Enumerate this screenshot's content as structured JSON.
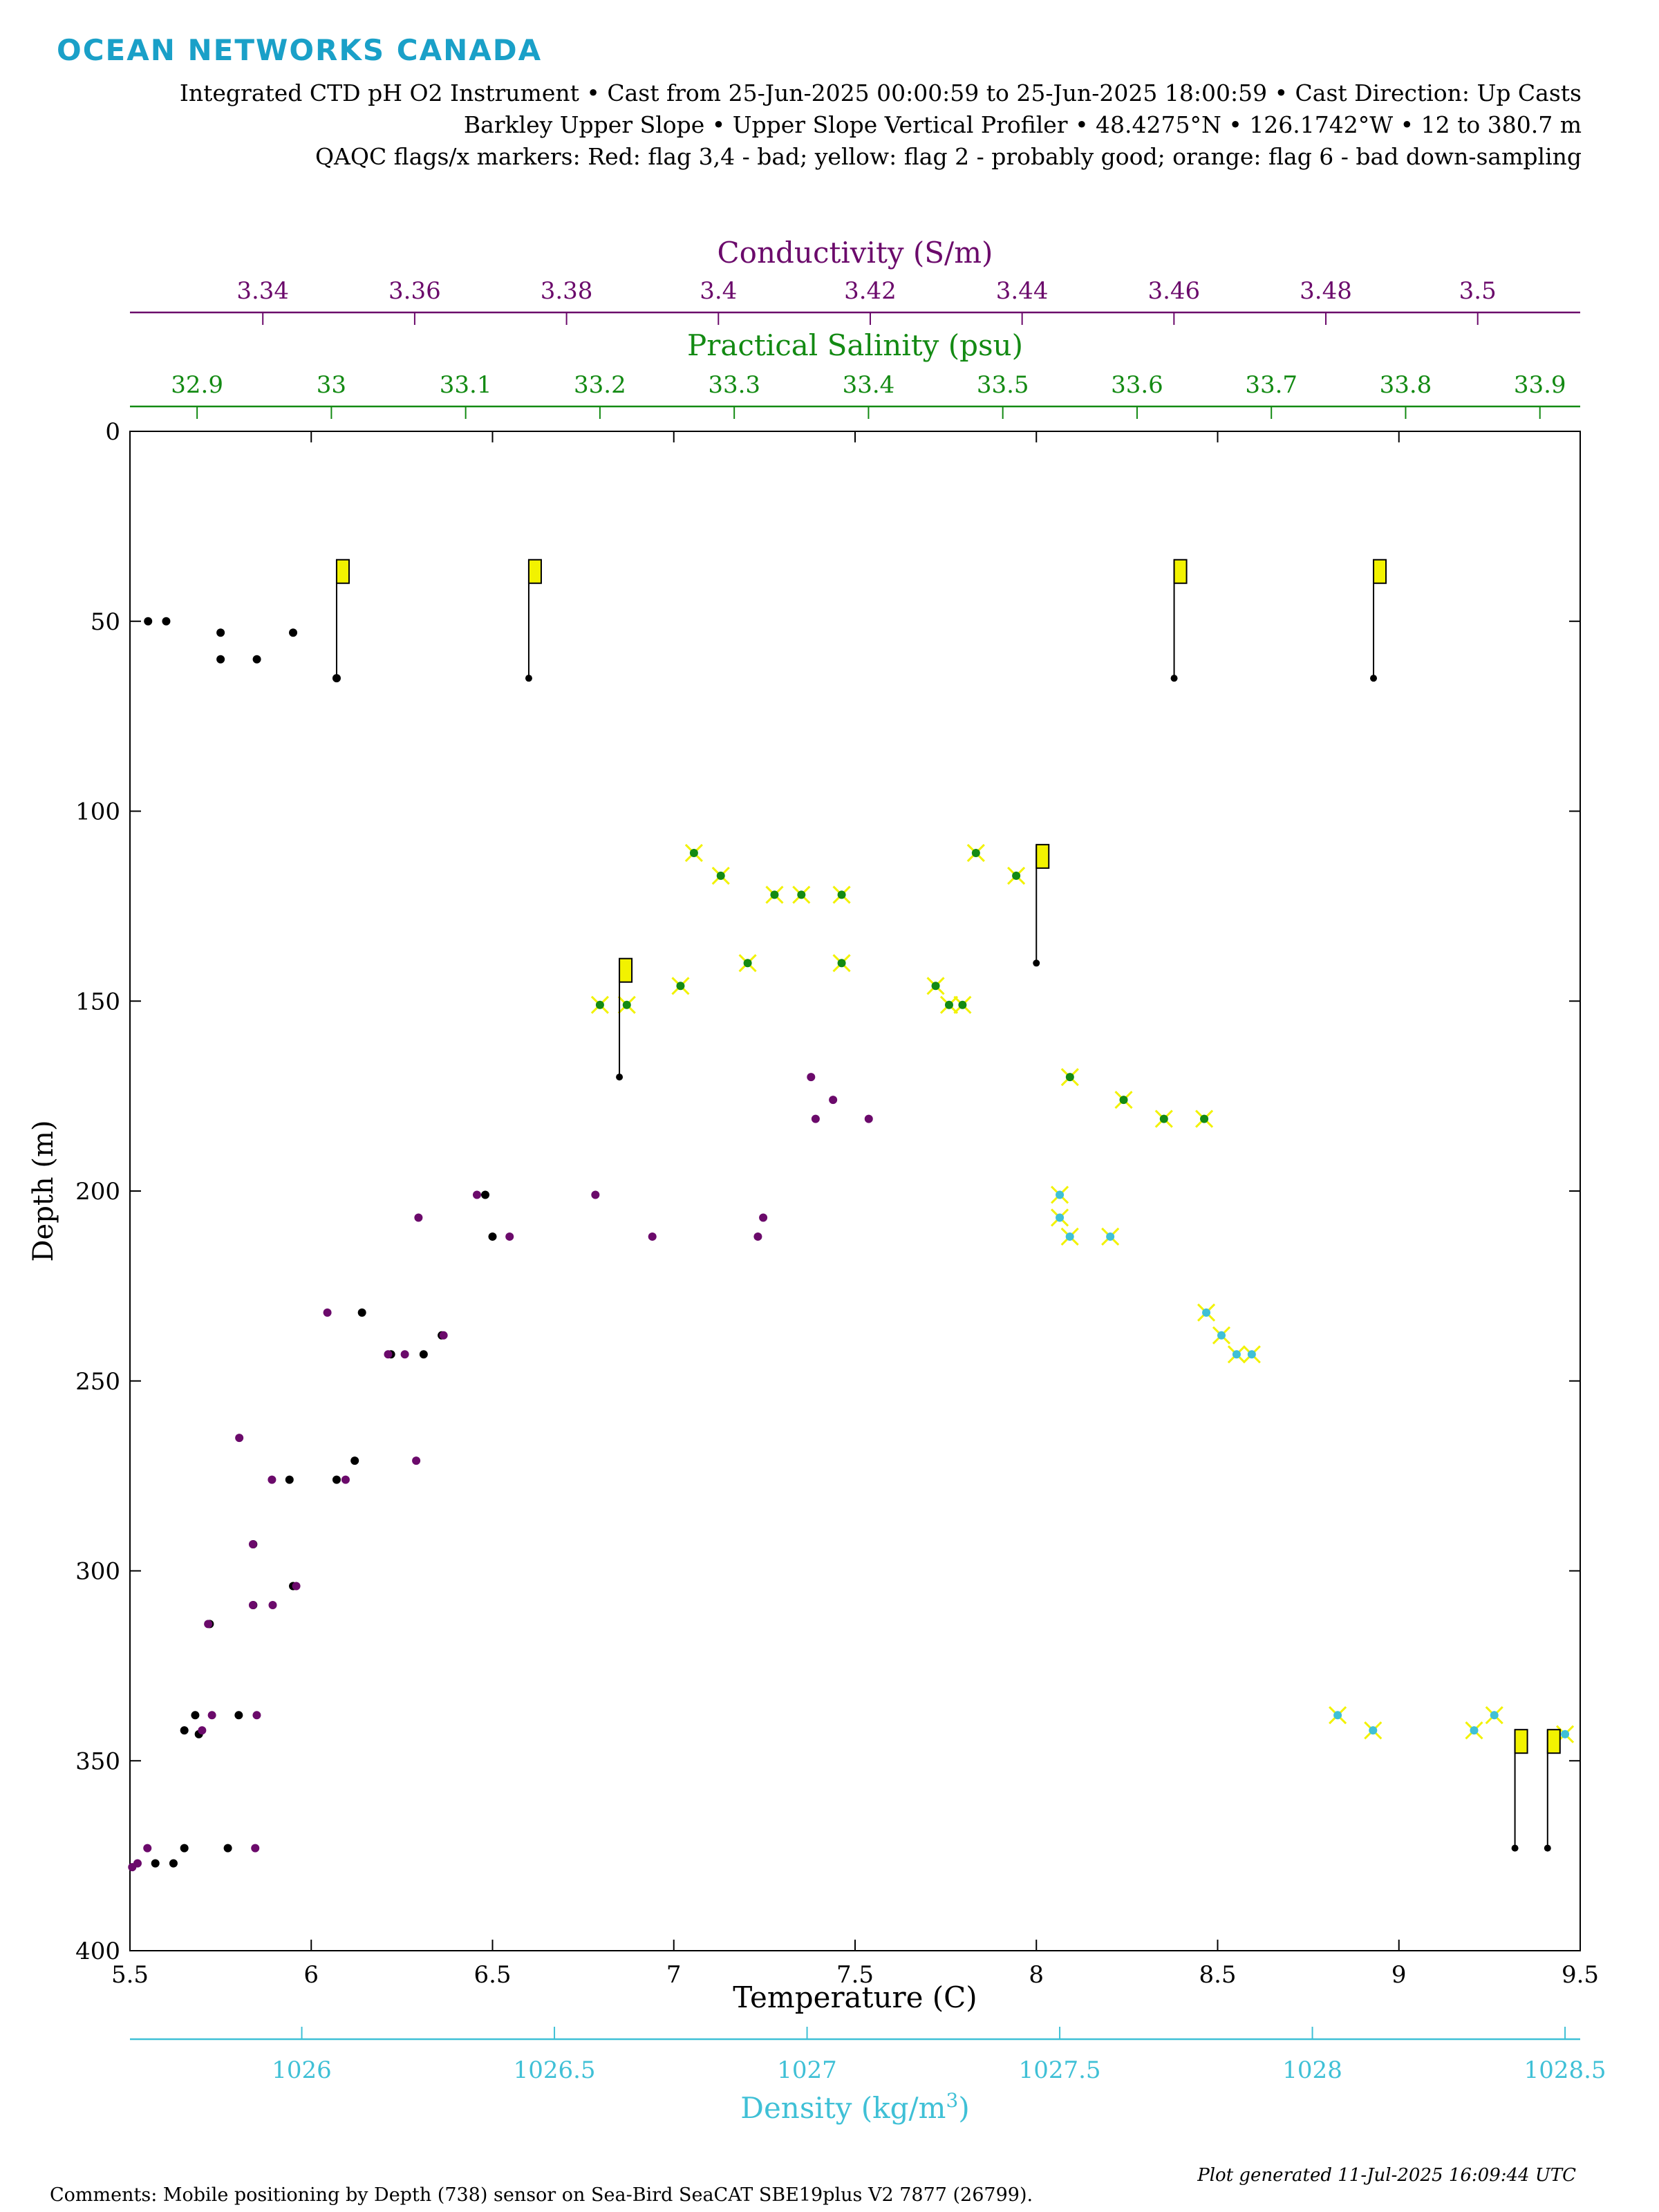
{
  "header": {
    "logo_text": "OCEAN NETWORKS CANADA",
    "line1": "Integrated CTD pH O2 Instrument • Cast from 25-Jun-2025 00:00:59 to 25-Jun-2025 18:00:59 • Cast Direction: Up Casts",
    "line2": "Barkley Upper Slope • Upper Slope Vertical Profiler • 48.4275°N • 126.1742°W • 12 to 380.7 m",
    "line3": "QAQC flags/x markers: Red: flag 3,4 - bad; yellow: flag 2 - probably good; orange: flag 6 - bad down-sampling"
  },
  "footer": {
    "comments": "Comments: Mobile positioning by Depth (738) sensor on Sea-Bird SeaCAT SBE19plus V2 7877 (26799).",
    "generated": "Plot generated 11-Jul-2025 16:09:44 UTC"
  },
  "colors": {
    "conductivity": "#6b0a6b",
    "salinity": "#138a13",
    "density": "#3fc0d6",
    "temperature": "#000000",
    "flag_good": "#f2f200",
    "flag_bad": "#ff2020"
  },
  "chart_data": {
    "type": "scatter",
    "y_axis": {
      "label": "Depth (m)",
      "lim": [
        0,
        400
      ],
      "reversed": true,
      "ticks": [
        0,
        50,
        100,
        150,
        200,
        250,
        300,
        350,
        400
      ]
    },
    "axes": {
      "temperature": {
        "label": "Temperature (C)",
        "lim": [
          5.5,
          9.5
        ],
        "ticks": [
          5.5,
          6,
          6.5,
          7,
          7.5,
          8,
          8.5,
          9,
          9.5
        ],
        "tick_labels": [
          "5.5",
          "6",
          "6.5",
          "7",
          "7.5",
          "8",
          "8.5",
          "9",
          "9.5"
        ]
      },
      "conductivity": {
        "label": "Conductivity (S/m)",
        "lim": [
          3.3225,
          3.5135
        ],
        "ticks": [
          3.34,
          3.36,
          3.38,
          3.4,
          3.42,
          3.44,
          3.46,
          3.48,
          3.5
        ],
        "tick_labels": [
          "3.34",
          "3.36",
          "3.38",
          "3.4",
          "3.42",
          "3.44",
          "3.46",
          "3.48",
          "3.5"
        ]
      },
      "salinity": {
        "label": "Practical Salinity (psu)",
        "lim": [
          32.85,
          33.93
        ],
        "ticks": [
          32.9,
          33,
          33.1,
          33.2,
          33.3,
          33.4,
          33.5,
          33.6,
          33.7,
          33.8,
          33.9
        ],
        "tick_labels": [
          "32.9",
          "33",
          "33.1",
          "33.2",
          "33.3",
          "33.4",
          "33.5",
          "33.6",
          "33.7",
          "33.8",
          "33.9"
        ]
      },
      "density": {
        "label_prefix": "Density (kg/m",
        "label_sup": "3",
        "label_suffix": ")",
        "lim": [
          1025.66,
          1028.53
        ],
        "ticks": [
          1026,
          1026.5,
          1027,
          1027.5,
          1028,
          1028.5
        ],
        "tick_labels": [
          "1026",
          "1026.5",
          "1027",
          "1027.5",
          "1028",
          "1028.5"
        ]
      }
    },
    "series": [
      {
        "name": "Temperature",
        "axis": "temperature",
        "points": [
          [
            5.55,
            50
          ],
          [
            5.6,
            50
          ],
          [
            5.75,
            53
          ],
          [
            5.95,
            53
          ],
          [
            5.75,
            60
          ],
          [
            5.85,
            60
          ],
          [
            6.07,
            65
          ],
          [
            6.48,
            201
          ],
          [
            6.5,
            212
          ],
          [
            6.14,
            232
          ],
          [
            6.22,
            243
          ],
          [
            6.31,
            243
          ],
          [
            6.36,
            238
          ],
          [
            6.12,
            271
          ],
          [
            5.94,
            276
          ],
          [
            6.07,
            276
          ],
          [
            5.84,
            293
          ],
          [
            5.95,
            304
          ],
          [
            5.84,
            309
          ],
          [
            5.72,
            314
          ],
          [
            5.68,
            338
          ],
          [
            5.8,
            338
          ],
          [
            5.65,
            342
          ],
          [
            5.69,
            343
          ],
          [
            5.65,
            373
          ],
          [
            5.77,
            373
          ],
          [
            5.62,
            377
          ],
          [
            5.57,
            377
          ]
        ]
      },
      {
        "name": "Conductivity",
        "axis": "conductivity",
        "points": [
          [
            3.3605,
            207
          ],
          [
            3.3682,
            201
          ],
          [
            3.3725,
            212
          ],
          [
            3.3838,
            201
          ],
          [
            3.3913,
            212
          ],
          [
            3.4052,
            212
          ],
          [
            3.4059,
            207
          ],
          [
            3.4122,
            170
          ],
          [
            3.4128,
            181
          ],
          [
            3.4151,
            176
          ],
          [
            3.4198,
            181
          ],
          [
            3.3485,
            232
          ],
          [
            3.3509,
            276
          ],
          [
            3.3565,
            243
          ],
          [
            3.3587,
            243
          ],
          [
            3.3602,
            271
          ],
          [
            3.3638,
            238
          ],
          [
            3.3369,
            265
          ],
          [
            3.3412,
            276
          ],
          [
            3.3444,
            304
          ],
          [
            3.3387,
            293
          ],
          [
            3.3413,
            309
          ],
          [
            3.3387,
            309
          ],
          [
            3.3328,
            314
          ],
          [
            3.3333,
            338
          ],
          [
            3.3392,
            338
          ],
          [
            3.332,
            342
          ],
          [
            3.3248,
            373
          ],
          [
            3.339,
            373
          ],
          [
            3.3235,
            377
          ],
          [
            3.3228,
            378
          ]
        ]
      },
      {
        "name": "Salinity",
        "axis": "salinity",
        "points": [
          [
            33.27,
            111
          ],
          [
            33.29,
            117
          ],
          [
            33.33,
            122
          ],
          [
            33.35,
            122
          ],
          [
            33.38,
            122
          ],
          [
            33.48,
            111
          ],
          [
            33.51,
            117
          ],
          [
            33.31,
            140
          ],
          [
            33.38,
            140
          ],
          [
            33.45,
            146
          ],
          [
            33.46,
            151
          ],
          [
            33.47,
            151
          ],
          [
            33.55,
            170
          ],
          [
            33.59,
            176
          ],
          [
            33.62,
            181
          ],
          [
            33.65,
            181
          ],
          [
            33.2,
            151
          ],
          [
            33.22,
            151
          ],
          [
            33.26,
            146
          ]
        ]
      },
      {
        "name": "Density",
        "axis": "density",
        "points": [
          [
            1027.5,
            201
          ],
          [
            1027.5,
            207
          ],
          [
            1027.52,
            212
          ],
          [
            1027.6,
            212
          ],
          [
            1027.79,
            232
          ],
          [
            1027.82,
            238
          ],
          [
            1027.85,
            243
          ],
          [
            1027.88,
            243
          ],
          [
            1028.05,
            338
          ],
          [
            1028.12,
            342
          ],
          [
            1028.36,
            338
          ],
          [
            1028.32,
            342
          ],
          [
            1028.5,
            343
          ]
        ]
      }
    ],
    "flags": [
      {
        "axis": "temperature",
        "x": 6.07,
        "y": 65,
        "len": 12
      },
      {
        "axis": "temperature",
        "x": 6.6,
        "y": 65,
        "len": 12
      },
      {
        "axis": "temperature",
        "x": 6.85,
        "y": 170,
        "len": 12
      },
      {
        "axis": "temperature",
        "x": 8.0,
        "y": 140,
        "len": 12
      },
      {
        "axis": "temperature",
        "x": 8.38,
        "y": 65,
        "len": 12
      },
      {
        "axis": "temperature",
        "x": 8.93,
        "y": 65,
        "len": 12
      },
      {
        "axis": "temperature",
        "x": 9.32,
        "y": 373,
        "len": 12
      },
      {
        "axis": "temperature",
        "x": 9.41,
        "y": 373,
        "len": 12
      }
    ]
  }
}
